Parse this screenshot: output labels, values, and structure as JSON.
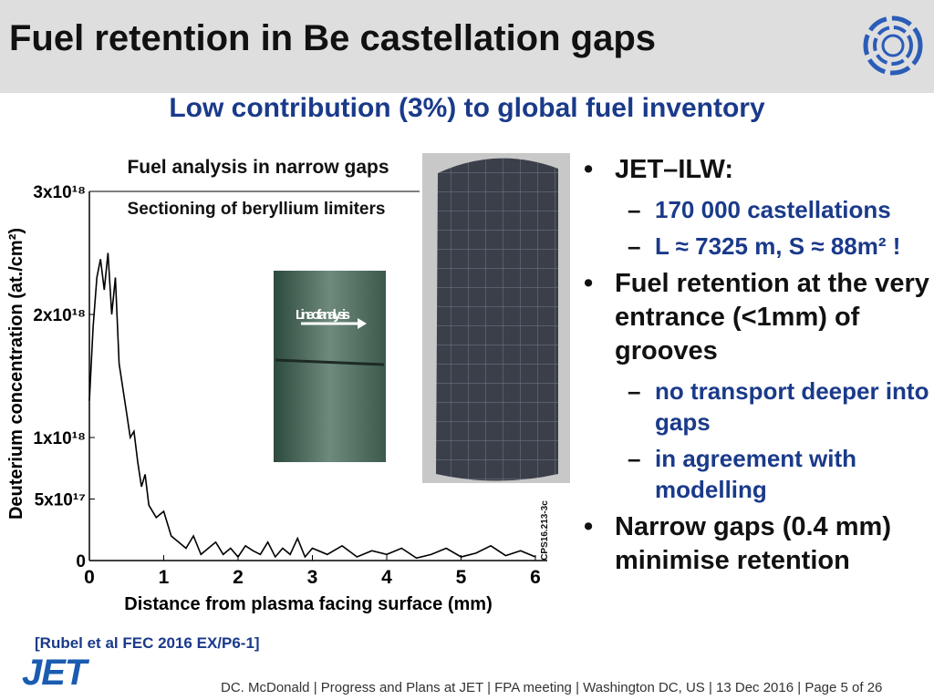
{
  "slide": {
    "title": "Fuel retention in Be castellation gaps",
    "subtitle": "Low contribution (3%) to global fuel inventory",
    "bullets": [
      {
        "text": "JET–ILW:",
        "subs": [
          "170 000 castellations",
          "L ≈ 7325 m, S ≈ 88m² !"
        ]
      },
      {
        "text": "Fuel retention at the very entrance (<1mm) of grooves",
        "subs": [
          "no transport deeper into gaps",
          "in agreement with modelling"
        ]
      },
      {
        "text": "Narrow gaps (0.4 mm) minimise retention",
        "subs": []
      }
    ],
    "reference": "[Rubel et al FEC 2016 EX/P6-1]",
    "logo": "JET",
    "footer": "DC. McDonald | Progress and Plans at JET | FPA meeting  | Washington DC, US | 13 Dec 2016 | Page 5 of 26"
  },
  "chart_data": {
    "type": "line",
    "annotations": [
      "Fuel analysis in narrow gaps",
      "Sectioning of  beryllium limiters",
      "Line of analysis",
      "CPS16.213-3c"
    ],
    "x_label": "Distance from plasma facing surface (mm)",
    "y_label": "Deuterium concentration (at./cm²)",
    "x": [
      0,
      0.05,
      0.1,
      0.15,
      0.2,
      0.25,
      0.3,
      0.35,
      0.4,
      0.45,
      0.5,
      0.55,
      0.6,
      0.65,
      0.7,
      0.75,
      0.8,
      0.9,
      1.0,
      1.1,
      1.2,
      1.3,
      1.4,
      1.5,
      1.6,
      1.7,
      1.8,
      1.9,
      2.0,
      2.1,
      2.2,
      2.3,
      2.4,
      2.5,
      2.6,
      2.7,
      2.8,
      2.9,
      3.0,
      3.2,
      3.4,
      3.6,
      3.8,
      4.0,
      4.2,
      4.4,
      4.6,
      4.8,
      5.0,
      5.2,
      5.4,
      5.6,
      5.8,
      6.0
    ],
    "series": [
      {
        "name": "Deuterium",
        "color": "#000000",
        "values": [
          1.3e+18,
          1.9e+18,
          2.3e+18,
          2.45e+18,
          2.2e+18,
          2.5e+18,
          2e+18,
          2.3e+18,
          1.6e+18,
          1.4e+18,
          1.2e+18,
          1e+18,
          1.05e+18,
          8e+17,
          6e+17,
          7e+17,
          4.5e+17,
          3.5e+17,
          4e+17,
          2e+17,
          1.5e+17,
          1e+17,
          2e+17,
          5e+16,
          1e+17,
          1.5e+17,
          5e+16,
          1e+17,
          3e+16,
          1.2e+17,
          8e+16,
          5e+16,
          1.5e+17,
          3e+16,
          1e+17,
          5e+16,
          1.8e+17,
          3e+16,
          1e+17,
          5e+16,
          1.2e+17,
          3e+16,
          8e+16,
          5e+16,
          1e+17,
          2e+16,
          5e+16,
          1e+17,
          3e+16,
          6e+16,
          1.2e+17,
          4e+16,
          8e+16,
          3e+16
        ]
      }
    ],
    "xlim": [
      0,
      6
    ],
    "xticks": [
      0,
      1,
      2,
      3,
      4,
      5,
      6
    ],
    "ylim": [
      0,
      3e+18
    ],
    "yticks": [
      {
        "value": 0,
        "label": "0"
      },
      {
        "value": 5e+17,
        "label": "5x10¹⁷"
      },
      {
        "value": 1e+18,
        "label": "1x10¹⁸"
      },
      {
        "value": 2e+18,
        "label": "2x10¹⁸"
      },
      {
        "value": 3e+18,
        "label": "3x10¹⁸"
      }
    ]
  }
}
